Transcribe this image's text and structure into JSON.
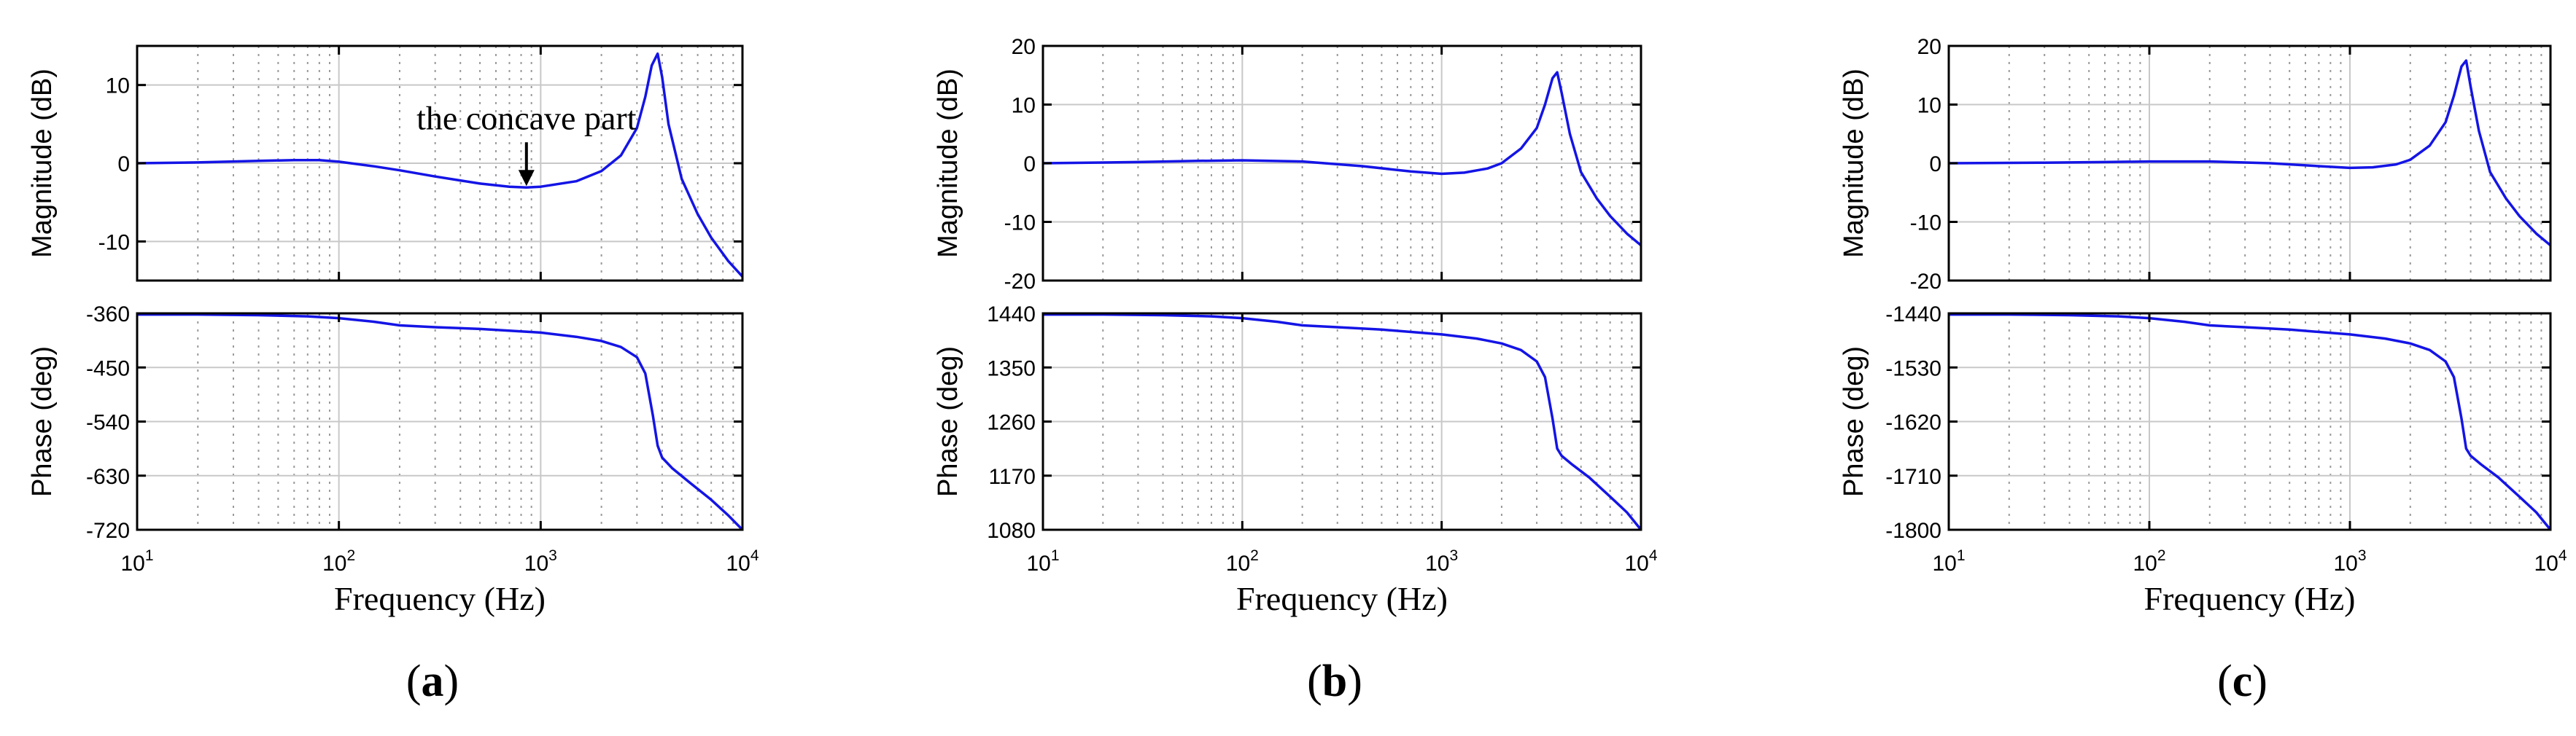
{
  "chart_data": [
    {
      "type": "line",
      "panel_label": "a",
      "caption_open": "(",
      "caption_close": ")",
      "xlabel": "Frequency (Hz)",
      "x_scale": "log",
      "xlim": [
        10,
        10000
      ],
      "x_ticks": [
        {
          "base": "10",
          "exp": "1"
        },
        {
          "base": "10",
          "exp": "2"
        },
        {
          "base": "10",
          "exp": "3"
        },
        {
          "base": "10",
          "exp": "4"
        }
      ],
      "magnitude": {
        "ylabel": "Magnitude (dB)",
        "ylim": [
          -15,
          15
        ],
        "yticks": [
          10,
          0,
          -10
        ],
        "ytick_labels": [
          "10",
          "0",
          "-10"
        ],
        "series": [
          {
            "name": "Magnitude",
            "color": "#1414e6",
            "x": [
              10,
              20,
              40,
              60,
              80,
              100,
              150,
              200,
              300,
              500,
              700,
              850,
              1000,
              1500,
              2000,
              2500,
              3000,
              3300,
              3550,
              3800,
              4000,
              4300,
              5000,
              6000,
              7000,
              8500,
              10000
            ],
            "y": [
              0.0,
              0.1,
              0.3,
              0.4,
              0.4,
              0.2,
              -0.4,
              -0.9,
              -1.7,
              -2.6,
              -3.0,
              -3.1,
              -3.0,
              -2.3,
              -1.0,
              1.0,
              4.5,
              8.5,
              12.5,
              14.0,
              11.0,
              5.0,
              -2.0,
              -6.5,
              -9.5,
              -12.5,
              -14.5
            ]
          }
        ],
        "annotation": {
          "text": "the concave part",
          "x": 850,
          "y": -3.1
        }
      },
      "phase": {
        "ylabel": "Phase (deg)",
        "ylim": [
          -720,
          -360
        ],
        "yticks": [
          -360,
          -450,
          -540,
          -630,
          -720
        ],
        "ytick_labels": [
          "-360",
          "-450",
          "-540",
          "-630",
          "-720"
        ],
        "series": [
          {
            "name": "Phase",
            "color": "#1414e6",
            "x": [
              10,
              20,
              40,
              70,
              100,
              150,
              200,
              300,
              500,
              1000,
              1500,
              2000,
              2500,
              3000,
              3300,
              3600,
              3800,
              4000,
              4500,
              5500,
              7000,
              8500,
              10000
            ],
            "y": [
              -362,
              -362,
              -363,
              -365,
              -368,
              -374,
              -380,
              -383,
              -386,
              -392,
              -399,
              -406,
              -416,
              -433,
              -460,
              -530,
              -580,
              -600,
              -618,
              -642,
              -670,
              -696,
              -720
            ]
          }
        ]
      }
    },
    {
      "type": "line",
      "panel_label": "b",
      "caption_open": "(",
      "caption_close": ")",
      "xlabel": "Frequency (Hz)",
      "x_scale": "log",
      "xlim": [
        10,
        10000
      ],
      "x_ticks": [
        {
          "base": "10",
          "exp": "1"
        },
        {
          "base": "10",
          "exp": "2"
        },
        {
          "base": "10",
          "exp": "3"
        },
        {
          "base": "10",
          "exp": "4"
        }
      ],
      "magnitude": {
        "ylabel": "Magnitude (dB)",
        "ylim": [
          -20,
          20
        ],
        "yticks": [
          20,
          10,
          0,
          -10,
          -20
        ],
        "ytick_labels": [
          "20",
          "10",
          "0",
          "-10",
          "-20"
        ],
        "series": [
          {
            "name": "Magnitude",
            "color": "#1414e6",
            "x": [
              10,
              30,
              60,
              100,
              200,
              400,
              700,
              1000,
              1300,
              1700,
              2000,
              2500,
              3000,
              3300,
              3600,
              3800,
              4000,
              4400,
              5000,
              6000,
              7000,
              8500,
              10000
            ],
            "y": [
              0.0,
              0.2,
              0.4,
              0.5,
              0.3,
              -0.5,
              -1.4,
              -1.8,
              -1.6,
              -0.9,
              0.0,
              2.5,
              6.0,
              10.0,
              14.5,
              15.5,
              12.0,
              5.0,
              -1.5,
              -6.0,
              -9.0,
              -12.0,
              -14.0
            ]
          }
        ]
      },
      "phase": {
        "ylabel": "Phase (deg)",
        "ylim": [
          1080,
          1440
        ],
        "yticks": [
          1440,
          1350,
          1260,
          1170,
          1080
        ],
        "ytick_labels": [
          "1440",
          "1350",
          "1260",
          "1170",
          "1080"
        ],
        "series": [
          {
            "name": "Phase",
            "color": "#1414e6",
            "x": [
              10,
              20,
              40,
              70,
              100,
              150,
              200,
              300,
              500,
              1000,
              1500,
              2000,
              2500,
              3000,
              3300,
              3600,
              3800,
              4000,
              4500,
              5500,
              7000,
              8500,
              10000
            ],
            "y": [
              1438,
              1438,
              1437,
              1435,
              1432,
              1426,
              1420,
              1417,
              1413,
              1405,
              1398,
              1390,
              1379,
              1360,
              1334,
              1265,
              1215,
              1203,
              1189,
              1167,
              1135,
              1109,
              1080
            ]
          }
        ]
      }
    },
    {
      "type": "line",
      "panel_label": "c",
      "caption_open": "(",
      "caption_close": ")",
      "xlabel": "Frequency (Hz)",
      "x_scale": "log",
      "xlim": [
        10,
        10000
      ],
      "x_ticks": [
        {
          "base": "10",
          "exp": "1"
        },
        {
          "base": "10",
          "exp": "2"
        },
        {
          "base": "10",
          "exp": "3"
        },
        {
          "base": "10",
          "exp": "4"
        }
      ],
      "magnitude": {
        "ylabel": "Magnitude (dB)",
        "ylim": [
          -20,
          20
        ],
        "yticks": [
          20,
          10,
          0,
          -10,
          -20
        ],
        "ytick_labels": [
          "20",
          "10",
          "0",
          "-10",
          "-20"
        ],
        "series": [
          {
            "name": "Magnitude",
            "color": "#1414e6",
            "x": [
              10,
              30,
              60,
              100,
              200,
              400,
              700,
              1000,
              1300,
              1700,
              2000,
              2500,
              3000,
              3300,
              3600,
              3800,
              4000,
              4400,
              5000,
              6000,
              7000,
              8500,
              10000
            ],
            "y": [
              0.0,
              0.1,
              0.2,
              0.3,
              0.3,
              0.0,
              -0.5,
              -0.8,
              -0.7,
              -0.2,
              0.6,
              3.0,
              7.0,
              11.5,
              16.5,
              17.5,
              13.0,
              5.5,
              -1.5,
              -6.0,
              -9.0,
              -12.0,
              -14.0
            ]
          }
        ]
      },
      "phase": {
        "ylabel": "Phase (deg)",
        "ylim": [
          -1800,
          -1440
        ],
        "yticks": [
          -1440,
          -1530,
          -1620,
          -1710,
          -1800
        ],
        "ytick_labels": [
          "-1440",
          "-1530",
          "-1620",
          "-1710",
          "-1800"
        ],
        "series": [
          {
            "name": "Phase",
            "color": "#1414e6",
            "x": [
              10,
              20,
              40,
              70,
              100,
              150,
              200,
              300,
              500,
              1000,
              1500,
              2000,
              2500,
              3000,
              3300,
              3600,
              3800,
              4000,
              4500,
              5500,
              7000,
              8500,
              10000
            ],
            "y": [
              -1442,
              -1442,
              -1443,
              -1445,
              -1448,
              -1454,
              -1460,
              -1463,
              -1467,
              -1475,
              -1482,
              -1490,
              -1501,
              -1520,
              -1546,
              -1615,
              -1665,
              -1677,
              -1691,
              -1713,
              -1745,
              -1771,
              -1800
            ]
          }
        ]
      }
    }
  ]
}
